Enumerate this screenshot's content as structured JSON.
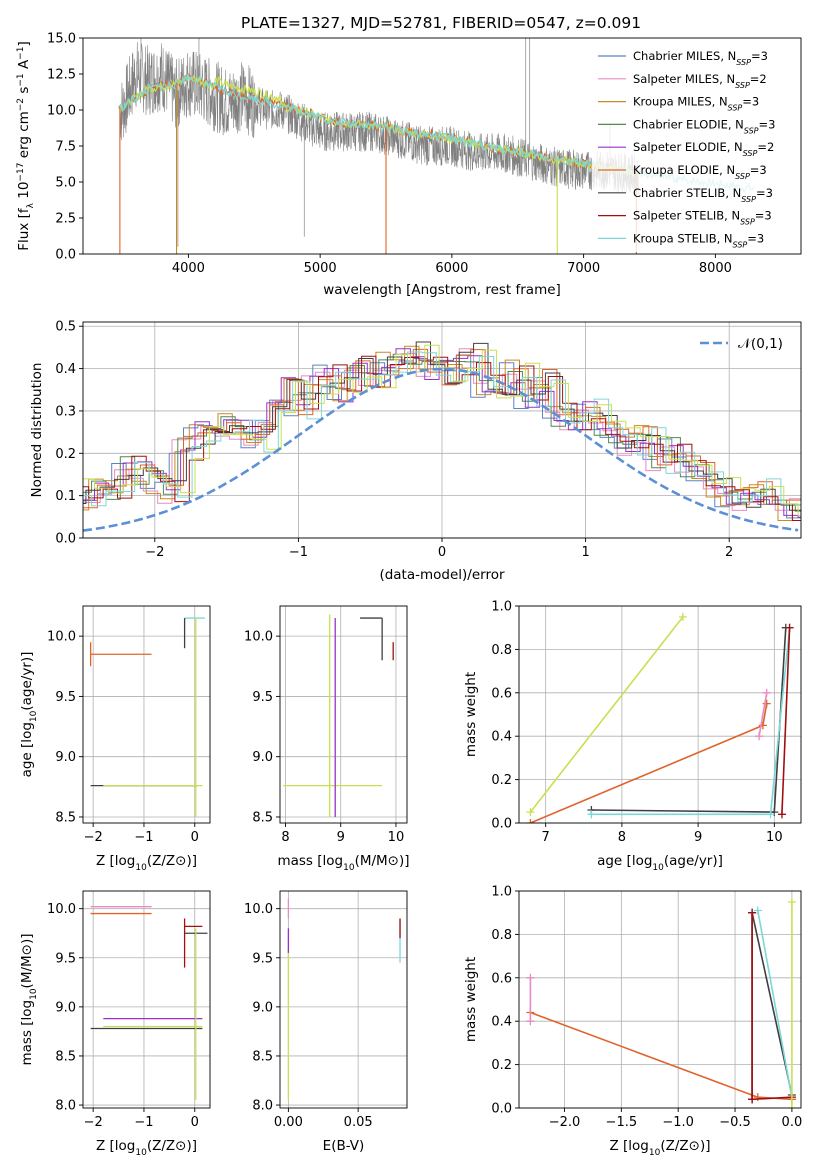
{
  "figure": {
    "title": "PLATE=1327, MJD=52781, FIBERID=0547, z=0.091"
  },
  "colors": {
    "Chabrier MILES": "#5b84c4",
    "Salpeter MILES": "#e88bc4",
    "Kroupa MILES": "#c98a24",
    "Chabrier ELODIE": "#4f8a4f",
    "Salpeter ELODIE": "#9b30c8",
    "Kroupa ELODIE": "#e0642a",
    "Chabrier STELIB": "#404040",
    "Salpeter STELIB": "#a01010",
    "Kroupa STELIB": "#7fd6d6",
    "extra_lime": "#c8e050",
    "data_gray": "#808080",
    "normal_curve": "#5b8fd6"
  },
  "chart_data": [
    {
      "id": "spectrum",
      "type": "line",
      "title": "PLATE=1327, MJD=52781, FIBERID=0547, z=0.091",
      "xlabel": "wavelength [Angstrom, rest frame]",
      "ylabel": "Flux [f_λ 10^-17 erg cm^-2 s^-1 A^-1]",
      "xlim": [
        3200,
        8650
      ],
      "ylim": [
        0,
        15
      ],
      "xticks": [
        "4000",
        "5000",
        "6000",
        "7000",
        "8000"
      ],
      "yticks": [
        "0.0",
        "2.5",
        "5.0",
        "7.5",
        "10.0",
        "12.5",
        "15.0"
      ],
      "legend_position": "upper right",
      "legend": [
        "Chabrier MILES, N_SSP=3",
        "Salpeter MILES, N_SSP=2",
        "Kroupa MILES, N_SSP=3",
        "Chabrier ELODIE, N_SSP=3",
        "Salpeter ELODIE, N_SSP=2",
        "Kroupa ELODIE, N_SSP=3",
        "Chabrier STELIB, N_SSP=3",
        "Salpeter STELIB, N_SSP=3",
        "Kroupa STELIB, N_SSP=3"
      ],
      "legend_series": [
        "Chabrier MILES",
        "Salpeter MILES",
        "Kroupa MILES",
        "Chabrier ELODIE",
        "Salpeter ELODIE",
        "Kroupa ELODIE",
        "Chabrier STELIB",
        "Salpeter STELIB",
        "Kroupa STELIB"
      ],
      "data_x": [
        3500,
        3600,
        3700,
        3800,
        3900,
        4000,
        4100,
        4200,
        4300,
        4400,
        4500,
        4600,
        4700,
        4800,
        4900,
        5000,
        5200,
        5400,
        5600,
        5800,
        6000,
        6200,
        6400,
        6600,
        6800,
        7000,
        7200,
        7400
      ],
      "data_y": [
        10.0,
        12.5,
        12.0,
        12.5,
        11.0,
        12.0,
        11.5,
        11.0,
        10.5,
        11.0,
        10.5,
        10.0,
        10.0,
        9.5,
        9.0,
        8.5,
        8.5,
        8.5,
        8.0,
        7.5,
        7.5,
        7.0,
        7.0,
        6.5,
        6.0,
        5.8,
        5.8,
        5.5
      ],
      "model_x": [
        3500,
        3700,
        3900,
        4000,
        4100,
        4300,
        4500,
        4700,
        4900,
        5100,
        5300,
        5500,
        5700,
        5900,
        6100,
        6300,
        6500,
        6700,
        6900,
        7100,
        7300,
        7500,
        7700,
        7900,
        8100,
        8300
      ],
      "model_y": [
        10.2,
        11.5,
        11.8,
        12.3,
        12.0,
        11.2,
        10.8,
        10.3,
        9.8,
        9.2,
        9.0,
        8.8,
        8.4,
        8.2,
        7.8,
        7.4,
        7.1,
        6.7,
        6.4,
        6.1,
        5.8,
        5.5,
        5.2,
        5.0,
        4.8,
        4.5
      ]
    },
    {
      "id": "residuals",
      "type": "line",
      "xlabel": "(data-model)/error",
      "ylabel": "Normed distribution",
      "xlim": [
        -2.5,
        2.5
      ],
      "ylim": [
        0,
        0.51
      ],
      "xticks": [
        "-2",
        "-1",
        "0",
        "1",
        "2"
      ],
      "yticks": [
        "0.0",
        "0.1",
        "0.2",
        "0.3",
        "0.4",
        "0.5"
      ],
      "legend": [
        "𝒩(0,1)"
      ],
      "legend_position": "upper right",
      "bin_width": 0.1,
      "hist_y": [
        0.05,
        0.04,
        0.05,
        0.07,
        0.08,
        0.07,
        0.06,
        0.14,
        0.11,
        0.09,
        0.11,
        0.12,
        0.17,
        0.15,
        0.13,
        0.11,
        0.21,
        0.25,
        0.24,
        0.27,
        0.26,
        0.23,
        0.29,
        0.35,
        0.31,
        0.36,
        0.38,
        0.35,
        0.4,
        0.37,
        0.41,
        0.42,
        0.44,
        0.4,
        0.39,
        0.41,
        0.43,
        0.36,
        0.34,
        0.39,
        0.33,
        0.37,
        0.29,
        0.28,
        0.3,
        0.26,
        0.24,
        0.22,
        0.25,
        0.18,
        0.21,
        0.17,
        0.15,
        0.12,
        0.1,
        0.09,
        0.11,
        0.08,
        0.07,
        0.07,
        0.06,
        0.05,
        0.05,
        0.04,
        0.03,
        0.03,
        0.04,
        0.03,
        0.02,
        0.02
      ],
      "series_names": [
        "Chabrier MILES",
        "Salpeter MILES",
        "Kroupa MILES",
        "Chabrier ELODIE",
        "Salpeter ELODIE",
        "Kroupa ELODIE",
        "Chabrier STELIB",
        "Salpeter STELIB",
        "Kroupa STELIB",
        "extra_lime"
      ]
    },
    {
      "id": "z_age",
      "type": "scatter",
      "xlabel": "Z [log10(Z/Z⊙)]",
      "ylabel": "age  [log10(age/yr)]",
      "xlim": [
        -2.2,
        0.3
      ],
      "ylim": [
        8.45,
        10.25
      ],
      "xticks": [
        "-2",
        "-1",
        "0"
      ],
      "yticks": [
        "8.5",
        "9.0",
        "9.5",
        "10.0"
      ],
      "hsegments": [
        {
          "x": [
            -2.05,
            -0.85
          ],
          "y": 9.85,
          "color": "Kroupa ELODIE"
        },
        {
          "x": [
            -2.05,
            0.05
          ],
          "y": 8.76,
          "color": "Chabrier STELIB"
        },
        {
          "x": [
            -1.8,
            0.15
          ],
          "y": 8.76,
          "color": "extra_lime"
        },
        {
          "x": [
            -0.2,
            0.2
          ],
          "y": 10.15,
          "color": "Kroupa STELIB"
        }
      ],
      "vsegments": [
        {
          "x": -2.05,
          "y": [
            9.75,
            9.95
          ],
          "color": "Kroupa ELODIE"
        },
        {
          "x": -0.2,
          "y": [
            9.9,
            10.15
          ],
          "color": "Chabrier STELIB"
        },
        {
          "x": 0.02,
          "y": [
            8.5,
            10.15
          ],
          "color": "extra_lime"
        }
      ]
    },
    {
      "id": "mass_age",
      "type": "scatter",
      "xlabel": "mass [log10(M/M⊙)]",
      "ylabel": "",
      "xlim": [
        7.9,
        10.2
      ],
      "ylim": [
        8.45,
        10.25
      ],
      "xticks": [
        "8",
        "9",
        "10"
      ],
      "yticks": [
        "8.5",
        "9.0",
        "9.5",
        "10.0"
      ],
      "hsegments": [
        {
          "x": [
            7.95,
            9.75
          ],
          "y": 8.76,
          "color": "extra_lime"
        },
        {
          "x": [
            9.35,
            9.75
          ],
          "y": 10.15,
          "color": "Chabrier STELIB"
        }
      ],
      "vsegments": [
        {
          "x": 8.8,
          "y": [
            8.5,
            10.18
          ],
          "color": "extra_lime"
        },
        {
          "x": 8.9,
          "y": [
            8.5,
            10.15
          ],
          "color": "Salpeter ELODIE"
        },
        {
          "x": 9.75,
          "y": [
            9.8,
            10.15
          ],
          "color": "Chabrier STELIB"
        },
        {
          "x": 9.95,
          "y": [
            9.8,
            9.95
          ],
          "color": "Salpeter STELIB"
        }
      ]
    },
    {
      "id": "age_weight",
      "type": "line",
      "xlabel": "age  [log10(age/yr)]",
      "ylabel": "mass weight",
      "xlim": [
        6.65,
        10.35
      ],
      "ylim": [
        0,
        1
      ],
      "xticks": [
        "7",
        "8",
        "9",
        "10"
      ],
      "yticks": [
        "0.0",
        "0.2",
        "0.4",
        "0.6",
        "0.8",
        "1.0"
      ],
      "series": [
        {
          "name": "extra_lime",
          "x": [
            6.8,
            8.8
          ],
          "y": [
            0.05,
            0.95
          ]
        },
        {
          "name": "Kroupa ELODIE",
          "x": [
            6.8,
            9.85,
            9.9
          ],
          "y": [
            0.0,
            0.45,
            0.55
          ]
        },
        {
          "name": "Salpeter MILES",
          "x": [
            9.8,
            9.9
          ],
          "y": [
            0.4,
            0.6
          ]
        },
        {
          "name": "Chabrier STELIB",
          "x": [
            7.6,
            10.0,
            10.15
          ],
          "y": [
            0.06,
            0.05,
            0.9
          ]
        },
        {
          "name": "Kroupa STELIB",
          "x": [
            7.6,
            9.95,
            10.2
          ],
          "y": [
            0.04,
            0.04,
            0.9
          ]
        },
        {
          "name": "Salpeter STELIB",
          "x": [
            10.1,
            10.2
          ],
          "y": [
            0.04,
            0.9
          ]
        }
      ]
    },
    {
      "id": "z_mass",
      "type": "scatter",
      "xlabel": "Z [log10(Z/Z⊙)]",
      "ylabel": "mass [log10(M/M⊙)]",
      "xlim": [
        -2.2,
        0.3
      ],
      "ylim": [
        7.97,
        10.18
      ],
      "xticks": [
        "-2",
        "-1",
        "0"
      ],
      "yticks": [
        "8.0",
        "8.5",
        "9.0",
        "9.5",
        "10.0"
      ],
      "hsegments": [
        {
          "x": [
            -2.05,
            -0.85
          ],
          "y": 10.02,
          "color": "Salpeter MILES"
        },
        {
          "x": [
            -2.05,
            -0.85
          ],
          "y": 9.95,
          "color": "Kroupa ELODIE"
        },
        {
          "x": [
            -1.8,
            0.15
          ],
          "y": 8.88,
          "color": "Salpeter ELODIE"
        },
        {
          "x": [
            -2.05,
            0.15
          ],
          "y": 8.78,
          "color": "Chabrier STELIB"
        },
        {
          "x": [
            -1.8,
            0.15
          ],
          "y": 8.8,
          "color": "extra_lime"
        },
        {
          "x": [
            -0.2,
            0.15
          ],
          "y": 9.82,
          "color": "Salpeter STELIB"
        },
        {
          "x": [
            -0.2,
            0.25
          ],
          "y": 9.75,
          "color": "Chabrier STELIB"
        }
      ],
      "vsegments": [
        {
          "x": 0.02,
          "y": [
            8.05,
            9.8
          ],
          "color": "extra_lime"
        },
        {
          "x": -0.2,
          "y": [
            9.4,
            9.9
          ],
          "color": "Salpeter STELIB"
        }
      ]
    },
    {
      "id": "ebv_mass",
      "type": "scatter",
      "xlabel": "E(B-V)",
      "ylabel": "",
      "xlim": [
        -0.006,
        0.085
      ],
      "ylim": [
        7.97,
        10.18
      ],
      "xticks": [
        "0.00",
        "0.05"
      ],
      "yticks": [
        "8.0",
        "8.5",
        "9.0",
        "9.5",
        "10.0"
      ],
      "vsegments": [
        {
          "x": 0.0,
          "y": [
            8.05,
            9.6
          ],
          "color": "extra_lime"
        },
        {
          "x": 0.0,
          "y": [
            9.55,
            9.8
          ],
          "color": "Salpeter ELODIE"
        },
        {
          "x": 0.0,
          "y": [
            9.9,
            10.1
          ],
          "color": "Salpeter MILES"
        },
        {
          "x": 0.08,
          "y": [
            9.45,
            9.9
          ],
          "color": "Kroupa STELIB"
        },
        {
          "x": 0.08,
          "y": [
            9.7,
            9.9
          ],
          "color": "Salpeter STELIB"
        }
      ]
    },
    {
      "id": "z_weight",
      "type": "line",
      "xlabel": "Z [log10(Z/Z⊙)]",
      "ylabel": "mass weight",
      "xlim": [
        -2.4,
        0.08
      ],
      "ylim": [
        0,
        1
      ],
      "xticks": [
        "-2.0",
        "-1.5",
        "-1.0",
        "-0.5",
        "0.0"
      ],
      "yticks": [
        "0.0",
        "0.2",
        "0.4",
        "0.6",
        "0.8",
        "1.0"
      ],
      "series": [
        {
          "name": "Kroupa ELODIE",
          "x": [
            -2.3,
            -0.3,
            0.0
          ],
          "y": [
            0.44,
            0.05,
            0.04
          ]
        },
        {
          "name": "Salpeter MILES",
          "x": [
            -2.3,
            -2.3
          ],
          "y": [
            0.4,
            0.6
          ]
        },
        {
          "name": "Chabrier STELIB",
          "x": [
            -0.35,
            -0.35,
            0.0
          ],
          "y": [
            0.04,
            0.9,
            0.06
          ]
        },
        {
          "name": "Kroupa STELIB",
          "x": [
            -0.3,
            0.0
          ],
          "y": [
            0.91,
            0.05
          ]
        },
        {
          "name": "Salpeter STELIB",
          "x": [
            -0.35,
            -0.35,
            0.0
          ],
          "y": [
            0.9,
            0.04,
            0.05
          ]
        },
        {
          "name": "extra_lime",
          "x": [
            0.0,
            0.0
          ],
          "y": [
            0.0,
            0.95
          ]
        }
      ]
    }
  ]
}
